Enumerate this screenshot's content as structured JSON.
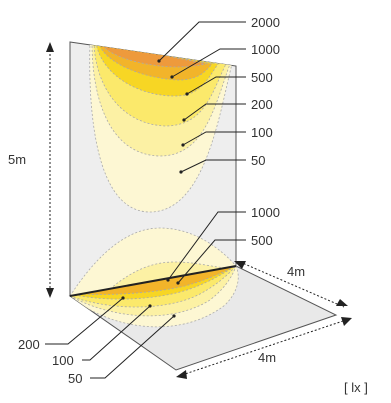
{
  "wall_labels": [
    "2000",
    "1000",
    "500",
    "200",
    "100",
    "50"
  ],
  "floor_labels_right": [
    "1000",
    "500"
  ],
  "floor_labels_left": [
    "200",
    "100",
    "50"
  ],
  "dimensions": {
    "height": "5m",
    "depth": "4m",
    "width": "4m"
  },
  "unit": "[ lx ]",
  "colors": {
    "wall": "#eeeeee",
    "floor": "#e9e9e9",
    "lux_2000": "#ee9a3c",
    "lux_1000": "#f2b42a",
    "lux_500": "#f7d624",
    "lux_200": "#fbe96b",
    "lux_100": "#fcf1a4",
    "lux_50": "#fdf7d3"
  }
}
